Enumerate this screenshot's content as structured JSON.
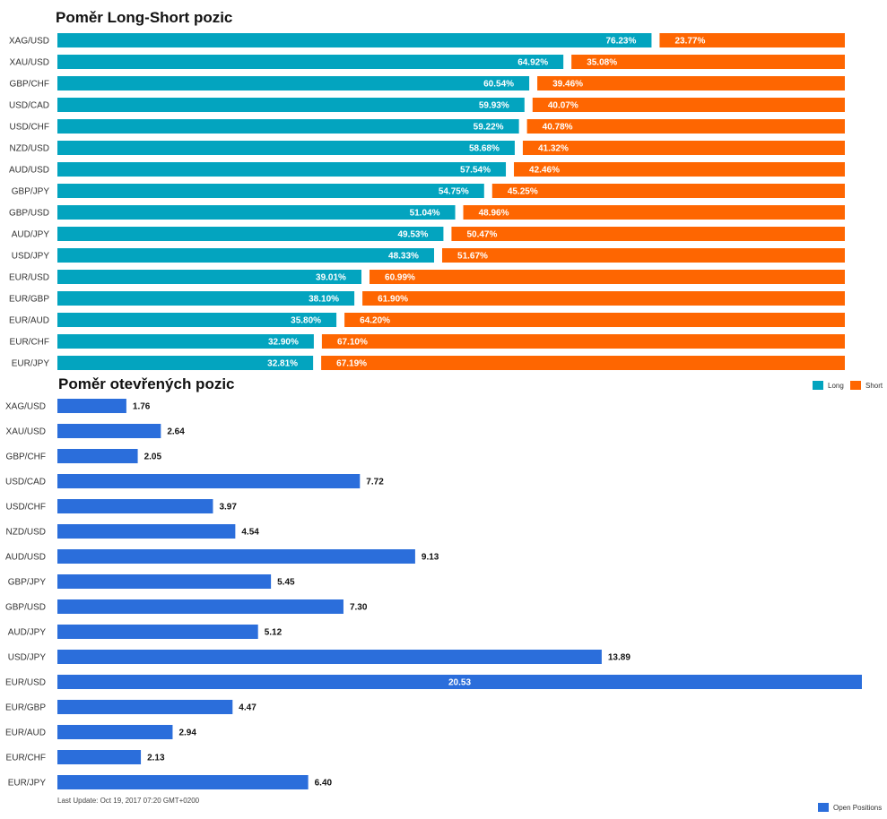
{
  "colors": {
    "long": "#03a4bf",
    "short": "#fe6601",
    "open": "#2b6edb"
  },
  "chart_data": [
    {
      "type": "bar",
      "orientation": "horizontal",
      "stacked": true,
      "title": "Poměr Long-Short pozic",
      "categories": [
        "XAG/USD",
        "XAU/USD",
        "GBP/CHF",
        "USD/CAD",
        "USD/CHF",
        "NZD/USD",
        "AUD/USD",
        "GBP/JPY",
        "GBP/USD",
        "AUD/JPY",
        "USD/JPY",
        "EUR/USD",
        "EUR/GBP",
        "EUR/AUD",
        "EUR/CHF",
        "EUR/JPY"
      ],
      "series": [
        {
          "name": "Long",
          "values": [
            76.23,
            64.92,
            60.54,
            59.93,
            59.22,
            58.68,
            57.54,
            54.75,
            51.04,
            49.53,
            48.33,
            39.01,
            38.1,
            35.8,
            32.9,
            32.81
          ]
        },
        {
          "name": "Short",
          "values": [
            23.77,
            35.08,
            39.46,
            40.07,
            40.78,
            41.32,
            42.46,
            45.25,
            48.96,
            50.47,
            51.67,
            60.99,
            61.9,
            64.2,
            67.1,
            67.19
          ]
        }
      ],
      "value_labels": {
        "long": [
          "76.23%",
          "64.92%",
          "60.54%",
          "59.93%",
          "59.22%",
          "58.68%",
          "57.54%",
          "54.75%",
          "51.04%",
          "49.53%",
          "48.33%",
          "39.01%",
          "38.10%",
          "35.80%",
          "32.90%",
          "32.81%"
        ],
        "short": [
          "23.77%",
          "35.08%",
          "39.46%",
          "40.07%",
          "40.78%",
          "41.32%",
          "42.46%",
          "45.25%",
          "48.96%",
          "50.47%",
          "51.67%",
          "60.99%",
          "61.90%",
          "64.20%",
          "67.10%",
          "67.19%"
        ]
      },
      "legend": [
        "Long",
        "Short"
      ],
      "legend_position": "bottom-right"
    },
    {
      "type": "bar",
      "orientation": "horizontal",
      "title": "Poměr otevřených pozic",
      "categories": [
        "XAG/USD",
        "XAU/USD",
        "GBP/CHF",
        "USD/CAD",
        "USD/CHF",
        "NZD/USD",
        "AUD/USD",
        "GBP/JPY",
        "GBP/USD",
        "AUD/JPY",
        "USD/JPY",
        "EUR/USD",
        "EUR/GBP",
        "EUR/AUD",
        "EUR/CHF",
        "EUR/JPY"
      ],
      "series": [
        {
          "name": "Open Positions",
          "values": [
            1.76,
            2.64,
            2.05,
            7.72,
            3.97,
            4.54,
            9.13,
            5.45,
            7.3,
            5.12,
            13.89,
            20.53,
            4.47,
            2.94,
            2.13,
            6.4
          ]
        }
      ],
      "value_labels": [
        "1.76",
        "2.64",
        "2.05",
        "7.72",
        "3.97",
        "4.54",
        "9.13",
        "5.45",
        "7.30",
        "5.12",
        "13.89",
        "20.53",
        "4.47",
        "2.94",
        "2.13",
        "6.40"
      ],
      "xlim": [
        0,
        20.53
      ],
      "legend": [
        "Open Positions"
      ],
      "legend_position": "bottom-right"
    }
  ],
  "footer": {
    "last_update": "Last Update: Oct 19, 2017 07:20 GMT+0200"
  }
}
